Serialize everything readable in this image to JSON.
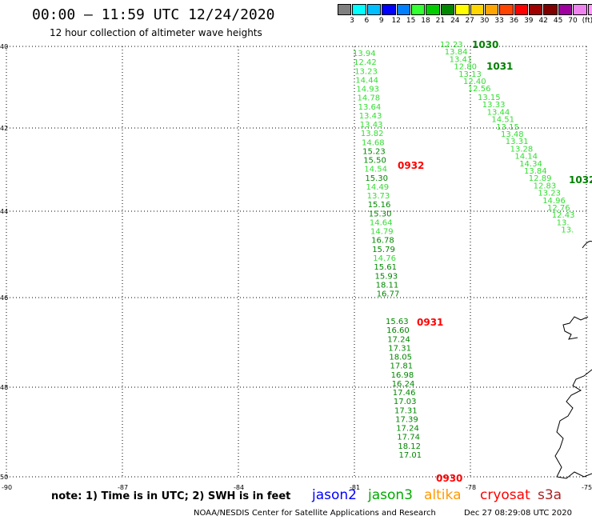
{
  "header": {
    "title": "00:00 – 11:59 UTC 12/24/2020",
    "subtitle": "12 hour collection of altimeter wave heights"
  },
  "legend": {
    "colors": [
      "#808080",
      "#00ffff",
      "#00bfff",
      "#0000ff",
      "#007fff",
      "#33ff33",
      "#00cc00",
      "#008800",
      "#ffff00",
      "#ffd700",
      "#ffa500",
      "#ff4500",
      "#ff0000",
      "#a00000",
      "#800000",
      "#a000a0",
      "#ee82ee",
      "#ff99ff",
      "#000000"
    ],
    "labels": [
      "3",
      "6",
      "9",
      "12",
      "15",
      "18",
      "21",
      "24",
      "27",
      "30",
      "33",
      "36",
      "39",
      "42",
      "45",
      "70",
      "(ft)"
    ]
  },
  "axes": {
    "x_ticks": [
      "-90",
      "-87",
      "-84",
      "-81",
      "-78",
      "-75"
    ],
    "y_ticks": [
      "40",
      "42",
      "44",
      "46",
      "48",
      "50"
    ]
  },
  "tracks": [
    {
      "time_label": "0932",
      "time_label_color": "#ff0000",
      "values": [
        "13.94",
        "12.42",
        "13.23",
        "14.44",
        "14.93",
        "14.78",
        "13.64",
        "13.43",
        "13.43",
        "13.82",
        "14.68",
        "15.23",
        "15.50",
        "14.54",
        "15.30",
        "14.49",
        "13.73",
        "15.16",
        "15.30",
        "14.64",
        "14.79",
        "16.78",
        "15.79",
        "14.76",
        "15.61",
        "15.93",
        "18.11",
        "16.77"
      ]
    },
    {
      "time_label": "0931",
      "time_label_color": "#ff0000",
      "values": [
        "15.63",
        "16.60",
        "17.24",
        "17.31",
        "18.05",
        "17.81",
        "16.98",
        "16.24",
        "17.46",
        "17.03",
        "17.31",
        "17.39",
        "17.24",
        "17.74",
        "18.12",
        "17.01"
      ]
    },
    {
      "time_label": "0930",
      "time_label_color": "#ff0000",
      "values": []
    },
    {
      "time_label": "1030",
      "time_label_color": "#008000",
      "values": [
        "12.23",
        "13.84",
        "13.41",
        "12.80",
        "13.13",
        "12.40",
        "12.56"
      ]
    },
    {
      "time_label": "1031",
      "time_label_color": "#008000",
      "values": [
        "13.15",
        "13.33",
        "13.44",
        "14.51",
        "13.15",
        "13.48",
        "13.31",
        "13.28",
        "14.14",
        "14.34",
        "13.84",
        "12.89",
        "12.83",
        "13.23",
        "14.96",
        "12.76",
        "12.43",
        "13.",
        "13."
      ]
    },
    {
      "time_label": "1032",
      "time_label_color": "#008000",
      "values": []
    }
  ],
  "footer": {
    "note": "note: 1) Time is in UTC; 2) SWH is in feet",
    "satellites": [
      {
        "name": "jason2",
        "color": "#0000ff"
      },
      {
        "name": "jason3",
        "color": "#00aa00"
      },
      {
        "name": "altika",
        "color": "#ff9900"
      },
      {
        "name": "cryosat",
        "color": "#ff0000"
      },
      {
        "name": "s3a",
        "color": "#aa2222"
      }
    ],
    "credit": "NOAA/NESDIS Center for Satellite Applications and Research",
    "date": "Dec 27 08:29:08 UTC 2020"
  }
}
